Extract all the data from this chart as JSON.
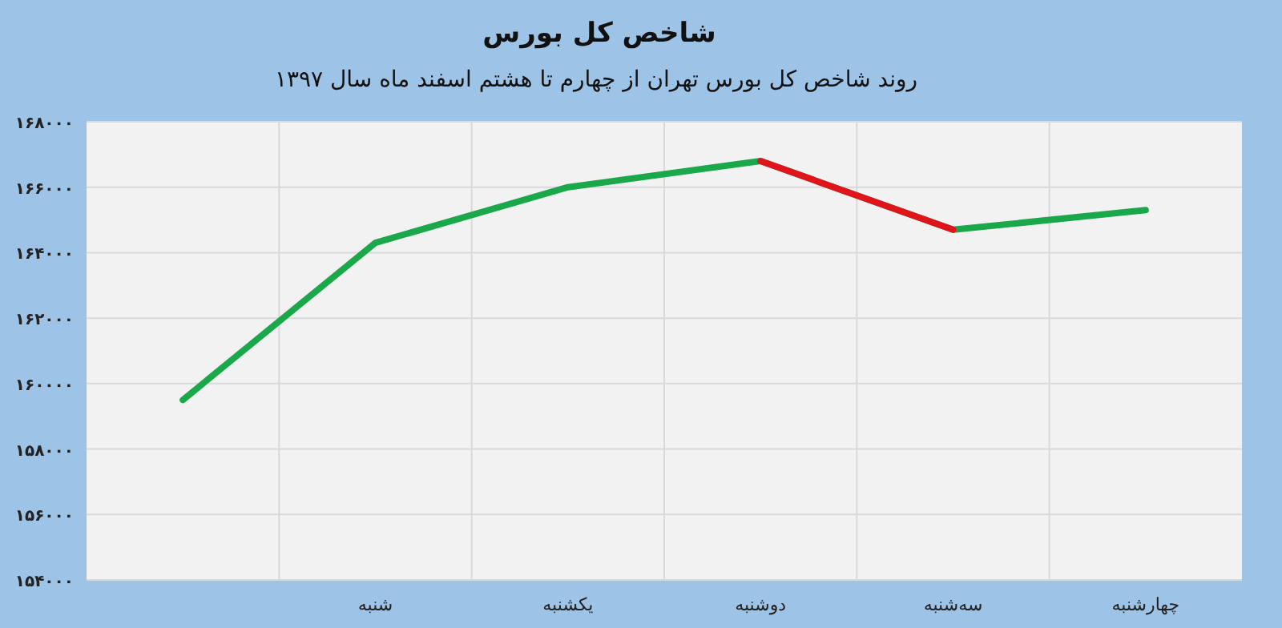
{
  "chart_data": {
    "type": "line",
    "title": "شاخص کل بورس",
    "subtitle": "روند شاخص کل بورس تهران از چهارم تا هشتم اسفند ماه سال ۱۳۹۷",
    "categories": [
      null,
      "شنبه",
      "یکشنبه",
      "دوشنبه",
      "سه‌شنبه",
      "چهارشنبه"
    ],
    "series": [
      {
        "values": [
          159500,
          164300,
          166000,
          166800,
          164700,
          165300
        ],
        "color": "#1aa84a"
      },
      {
        "values": [
          null,
          null,
          null,
          166800,
          164700,
          null
        ],
        "color": "#e0151b"
      }
    ],
    "ylim": [
      154000,
      168000
    ],
    "yticks": [
      {
        "value": 154000,
        "label": "۱۵۴۰۰۰"
      },
      {
        "value": 156000,
        "label": "۱۵۶۰۰۰"
      },
      {
        "value": 158000,
        "label": "۱۵۸۰۰۰"
      },
      {
        "value": 160000,
        "label": "۱۶۰۰۰۰"
      },
      {
        "value": 162000,
        "label": "۱۶۲۰۰۰"
      },
      {
        "value": 164000,
        "label": "۱۶۴۰۰۰"
      },
      {
        "value": 166000,
        "label": "۱۶۶۰۰۰"
      },
      {
        "value": 168000,
        "label": "۱۶۸۰۰۰"
      }
    ],
    "grid": true,
    "marker": "none",
    "line_style": "solid"
  }
}
